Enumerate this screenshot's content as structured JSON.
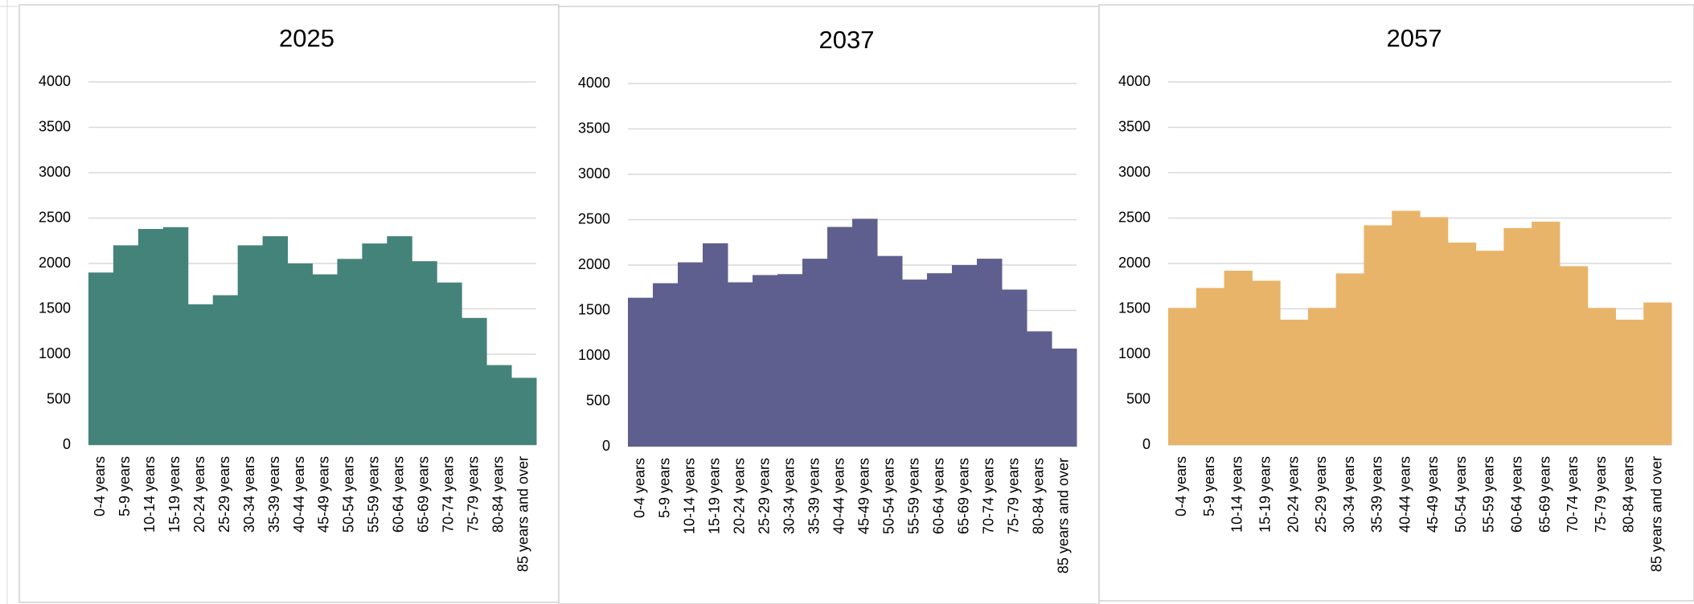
{
  "chart_data": [
    {
      "type": "bar",
      "title": "2025",
      "categories": [
        "0-4 years",
        "5-9 years",
        "10-14 years",
        "15-19 years",
        "20-24 years",
        "25-29 years",
        "30-34 years",
        "35-39 years",
        "40-44 years",
        "45-49 years",
        "50-54 years",
        "55-59 years",
        "60-64 years",
        "65-69 years",
        "70-74 years",
        "75-79 years",
        "80-84 years",
        "85 years and over"
      ],
      "values": [
        1900,
        2200,
        2380,
        2400,
        1550,
        1650,
        2200,
        2300,
        2000,
        1880,
        2050,
        2220,
        2300,
        2025,
        1790,
        1400,
        880,
        740
      ],
      "color": "#44837a",
      "ylim": [
        0,
        4000
      ],
      "yticks": [
        0,
        500,
        1000,
        1500,
        2000,
        2500,
        3000,
        3500,
        4000
      ],
      "grid": true
    },
    {
      "type": "bar",
      "title": "2037",
      "categories": [
        "0-4 years",
        "5-9 years",
        "10-14 years",
        "15-19 years",
        "20-24 years",
        "25-29 years",
        "30-34 years",
        "35-39 years",
        "40-44 years",
        "45-49 years",
        "50-54 years",
        "55-59 years",
        "60-64 years",
        "65-69 years",
        "70-74 years",
        "75-79 years",
        "80-84 years",
        "85 years and over"
      ],
      "values": [
        1640,
        1800,
        2030,
        2240,
        1810,
        1890,
        1900,
        2070,
        2420,
        2510,
        2100,
        1840,
        1910,
        2000,
        2070,
        1730,
        1270,
        1080
      ],
      "color": "#5f5f8f",
      "ylim": [
        0,
        4000
      ],
      "yticks": [
        0,
        500,
        1000,
        1500,
        2000,
        2500,
        3000,
        3500,
        4000
      ],
      "grid": true
    },
    {
      "type": "bar",
      "title": "2057",
      "categories": [
        "0-4 years",
        "5-9 years",
        "10-14 years",
        "15-19 years",
        "20-24 years",
        "25-29 years",
        "30-34 years",
        "35-39 years",
        "40-44 years",
        "45-49 years",
        "50-54 years",
        "55-59 years",
        "60-64 years",
        "65-69 years",
        "70-74 years",
        "75-79 years",
        "80-84 years",
        "85 years and over"
      ],
      "values": [
        1510,
        1730,
        1920,
        1810,
        1380,
        1510,
        1890,
        2420,
        2580,
        2510,
        2230,
        2140,
        2390,
        2460,
        1970,
        1510,
        1380,
        1570
      ],
      "color": "#e8b46a",
      "ylim": [
        0,
        4000
      ],
      "yticks": [
        0,
        500,
        1000,
        1500,
        2000,
        2500,
        3000,
        3500,
        4000
      ],
      "grid": true
    }
  ]
}
